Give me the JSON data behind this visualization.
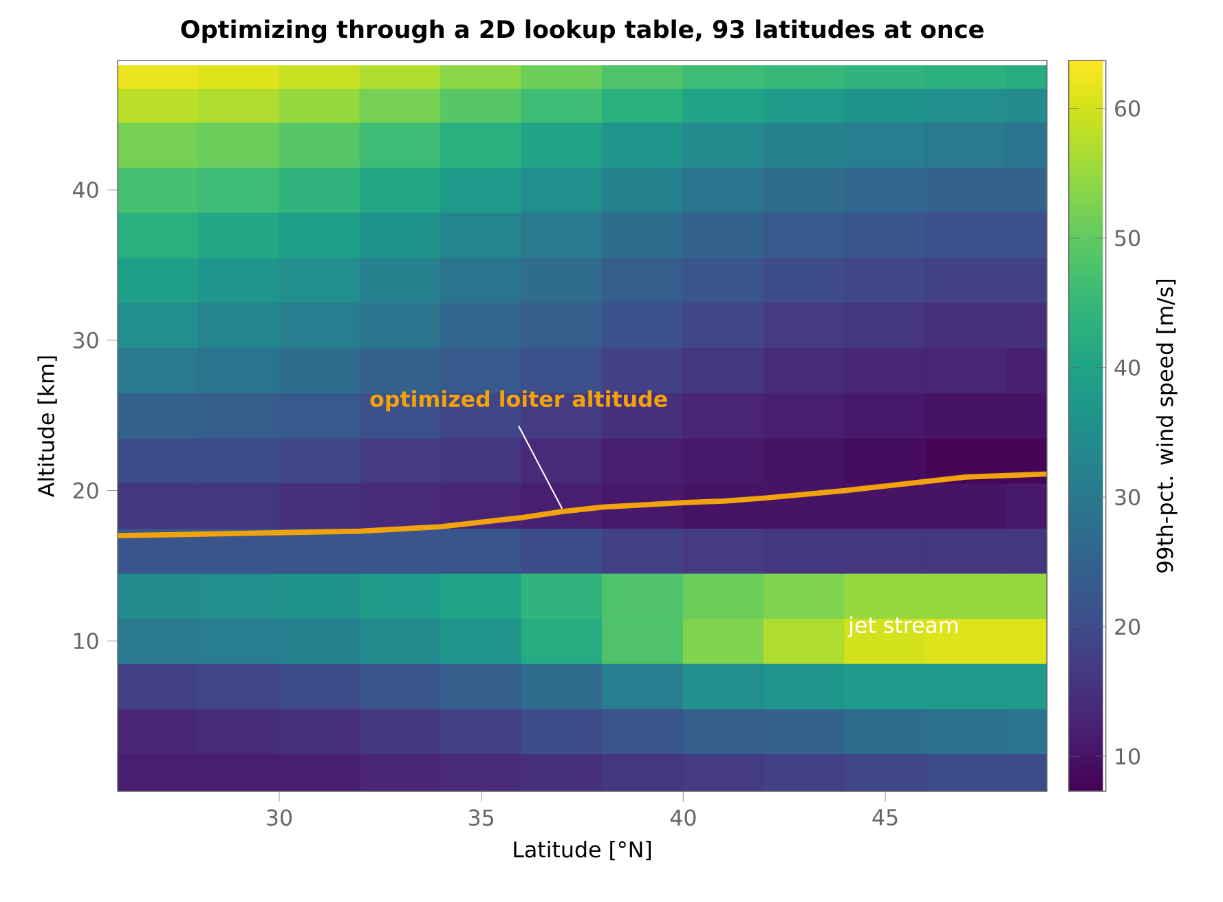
{
  "chart_data": {
    "type": "heatmap",
    "title": "Optimizing through a 2D lookup table, 93 latitudes at once",
    "xlabel": "Latitude [°N]",
    "ylabel": "Altitude [km]",
    "clabel": "99th-pct. wind speed [m/s]",
    "x": [
      27,
      29,
      31,
      33,
      35,
      37,
      39,
      41,
      43,
      45,
      47,
      49
    ],
    "y": [
      47.5,
      46,
      43,
      40,
      37,
      34,
      31,
      28,
      25,
      22,
      19,
      16,
      13,
      10,
      7,
      4,
      1
    ],
    "cells": [
      [
        62,
        61,
        59,
        57,
        54,
        51,
        48,
        46,
        45,
        44,
        43,
        42
      ],
      [
        58,
        57,
        55,
        52,
        49,
        46,
        43,
        40,
        38,
        36,
        35,
        34
      ],
      [
        52,
        51,
        49,
        46,
        43,
        40,
        37,
        34,
        32,
        31,
        30,
        29
      ],
      [
        47,
        46,
        44,
        41,
        38,
        35,
        32,
        29,
        27,
        26,
        25,
        25
      ],
      [
        43,
        41,
        39,
        36,
        33,
        30,
        27,
        25,
        23,
        22,
        21,
        21
      ],
      [
        39,
        37,
        35,
        32,
        29,
        27,
        24,
        22,
        20,
        19,
        18,
        18
      ],
      [
        35,
        33,
        31,
        29,
        26,
        24,
        21,
        19,
        17,
        16,
        15,
        15
      ],
      [
        30,
        29,
        27,
        25,
        23,
        21,
        18,
        16,
        14,
        13,
        13,
        12
      ],
      [
        25,
        24,
        23,
        21,
        19,
        17,
        15,
        13,
        12,
        11,
        10,
        10
      ],
      [
        20,
        20,
        19,
        17,
        16,
        14,
        12,
        11,
        10,
        9,
        8,
        8
      ],
      [
        16,
        16,
        15,
        14,
        13,
        12,
        11,
        10,
        10,
        10,
        10,
        11
      ],
      [
        22,
        22,
        22,
        22,
        22,
        20,
        18,
        17,
        16,
        16,
        16,
        16
      ],
      [
        34,
        35,
        36,
        38,
        40,
        44,
        48,
        51,
        53,
        55,
        55,
        55
      ],
      [
        30,
        31,
        32,
        34,
        37,
        42,
        48,
        53,
        57,
        60,
        61,
        61
      ],
      [
        18,
        19,
        20,
        22,
        24,
        27,
        31,
        35,
        37,
        38,
        38,
        38
      ],
      [
        13,
        14,
        15,
        16,
        18,
        20,
        22,
        24,
        25,
        27,
        28,
        29
      ],
      [
        12,
        12,
        12,
        13,
        14,
        15,
        16,
        17,
        18,
        19,
        20,
        20
      ]
    ],
    "clim": [
      7.3,
      63.7
    ],
    "cticks": [
      10,
      20,
      30,
      40,
      50,
      60
    ],
    "xlim": [
      26,
      49
    ],
    "xticks": [
      30,
      35,
      40,
      45
    ],
    "ylim": [
      0,
      48.6
    ],
    "yticks": [
      10,
      20,
      30,
      40
    ],
    "series": [
      {
        "type": "line",
        "color": "#f0a30a",
        "x": [
          26,
          28,
          30,
          32,
          34,
          35,
          36,
          37,
          38,
          40,
          41,
          42,
          44,
          45,
          46,
          47,
          48,
          49
        ],
        "values": [
          17.0,
          17.1,
          17.2,
          17.3,
          17.6,
          17.9,
          18.2,
          18.6,
          18.9,
          19.2,
          19.3,
          19.5,
          20.0,
          20.3,
          20.6,
          20.9,
          21.0,
          21.1
        ]
      }
    ],
    "annotations": [
      {
        "text": "optimized loiter altitude",
        "x": 37,
        "y": 18.8
      },
      "jet stream"
    ]
  }
}
